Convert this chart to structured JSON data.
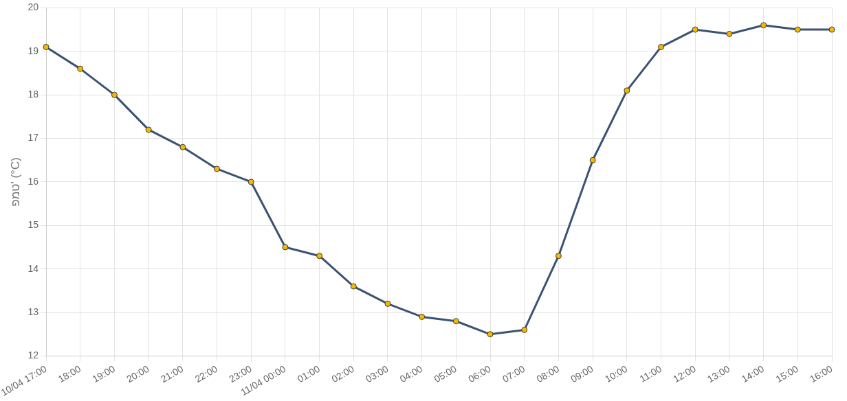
{
  "chart_data": {
    "type": "line",
    "ylabel": "טמפ' (°C)",
    "categories": [
      "10/04 17:00",
      "18:00",
      "19:00",
      "20:00",
      "21:00",
      "22:00",
      "23:00",
      "11/04 00:00",
      "01:00",
      "02:00",
      "03:00",
      "04:00",
      "05:00",
      "06:00",
      "07:00",
      "08:00",
      "09:00",
      "10:00",
      "11:00",
      "12:00",
      "13:00",
      "14:00",
      "15:00",
      "16:00"
    ],
    "series": [
      {
        "color": "#3b5272",
        "values": [
          19.1,
          18.6,
          18.0,
          17.2,
          16.8,
          16.3,
          16.0,
          14.5,
          14.3,
          13.6,
          13.2,
          12.9,
          12.8,
          12.5,
          12.6,
          14.3,
          16.5,
          18.1,
          19.1,
          19.5,
          19.4,
          19.6,
          19.5,
          19.5
        ]
      }
    ],
    "ylim": [
      12,
      20
    ],
    "yticks": [
      12,
      13,
      14,
      15,
      16,
      17,
      18,
      19,
      20
    ],
    "grid": true,
    "marker": "circle",
    "line_style": "solid",
    "legend": false
  }
}
